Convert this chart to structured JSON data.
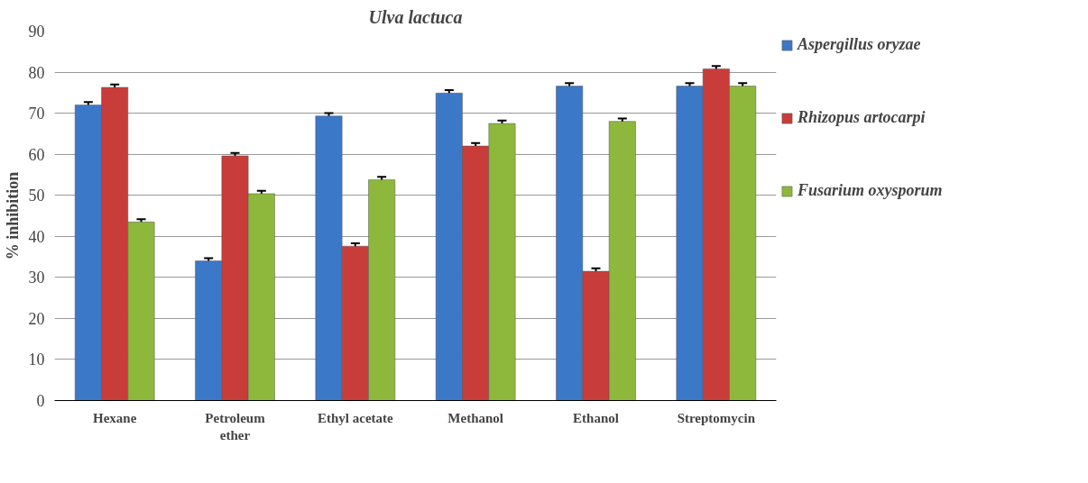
{
  "chart_data": {
    "type": "bar",
    "title": "Ulva lactuca",
    "ylabel": "% inhibition",
    "categories": [
      "Hexane",
      "Petroleum ether",
      "Ethyl acetate",
      "Methanol",
      "Ethanol",
      "Streptomycin"
    ],
    "series": [
      {
        "name": "Aspergillus oryzae",
        "color": "#3b78c8",
        "values": [
          72,
          34,
          69.3,
          74.9,
          76.6,
          76.6
        ],
        "errors": [
          0.7,
          0.7,
          0.7,
          0.7,
          0.7,
          0.7
        ]
      },
      {
        "name": "Rhizopus artocarpi",
        "color": "#c83c3a",
        "values": [
          76.3,
          59.6,
          37.6,
          62,
          31.5,
          80.8
        ],
        "errors": [
          0.7,
          0.7,
          0.7,
          0.7,
          0.7,
          0.7
        ]
      },
      {
        "name": "Fusarium oxysporum",
        "color": "#8db83c",
        "values": [
          43.5,
          50.4,
          53.8,
          67.5,
          68,
          76.6
        ],
        "errors": [
          0.7,
          0.7,
          0.7,
          0.7,
          0.7,
          0.7
        ]
      }
    ],
    "ylim": [
      0,
      90
    ],
    "yticks": [
      0,
      10,
      20,
      30,
      40,
      50,
      60,
      70,
      80,
      90
    ],
    "grid": "y",
    "legend": "right"
  }
}
